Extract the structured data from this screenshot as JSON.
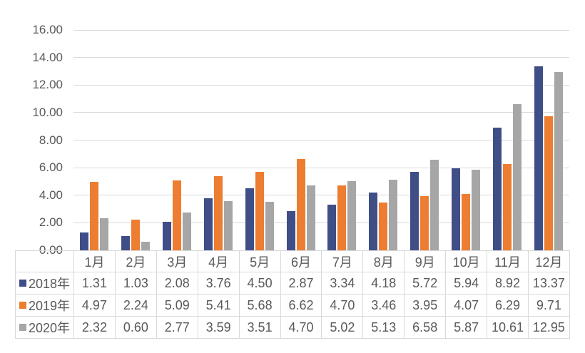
{
  "chart_data": {
    "type": "bar",
    "title": "",
    "xlabel": "",
    "ylabel": "",
    "categories": [
      "1月",
      "2月",
      "3月",
      "4月",
      "5月",
      "6月",
      "7月",
      "8月",
      "9月",
      "10月",
      "11月",
      "12月"
    ],
    "series": [
      {
        "name": "2018年",
        "color": "#3F4E87",
        "values": [
          1.31,
          1.03,
          2.08,
          3.76,
          4.5,
          2.87,
          3.34,
          4.18,
          5.72,
          5.94,
          8.92,
          13.37
        ]
      },
      {
        "name": "2019年",
        "color": "#ED7D31",
        "values": [
          4.97,
          2.24,
          5.09,
          5.41,
          5.68,
          6.62,
          4.7,
          3.46,
          3.95,
          4.07,
          6.29,
          9.71
        ]
      },
      {
        "name": "2020年",
        "color": "#A6A6A6",
        "values": [
          2.32,
          0.6,
          2.77,
          3.59,
          3.51,
          4.7,
          5.02,
          5.13,
          6.58,
          5.87,
          10.61,
          12.95
        ]
      }
    ],
    "ylim": [
      0,
      16
    ],
    "ytick_step": 2,
    "ytick_decimals": 2,
    "value_decimals": 2,
    "grid": true,
    "legend_position": "table-left",
    "colors": {
      "grid": "#D9D9D9",
      "table_border": "#D9D9D9",
      "text": "#595959",
      "background": "#FFFFFF"
    }
  }
}
